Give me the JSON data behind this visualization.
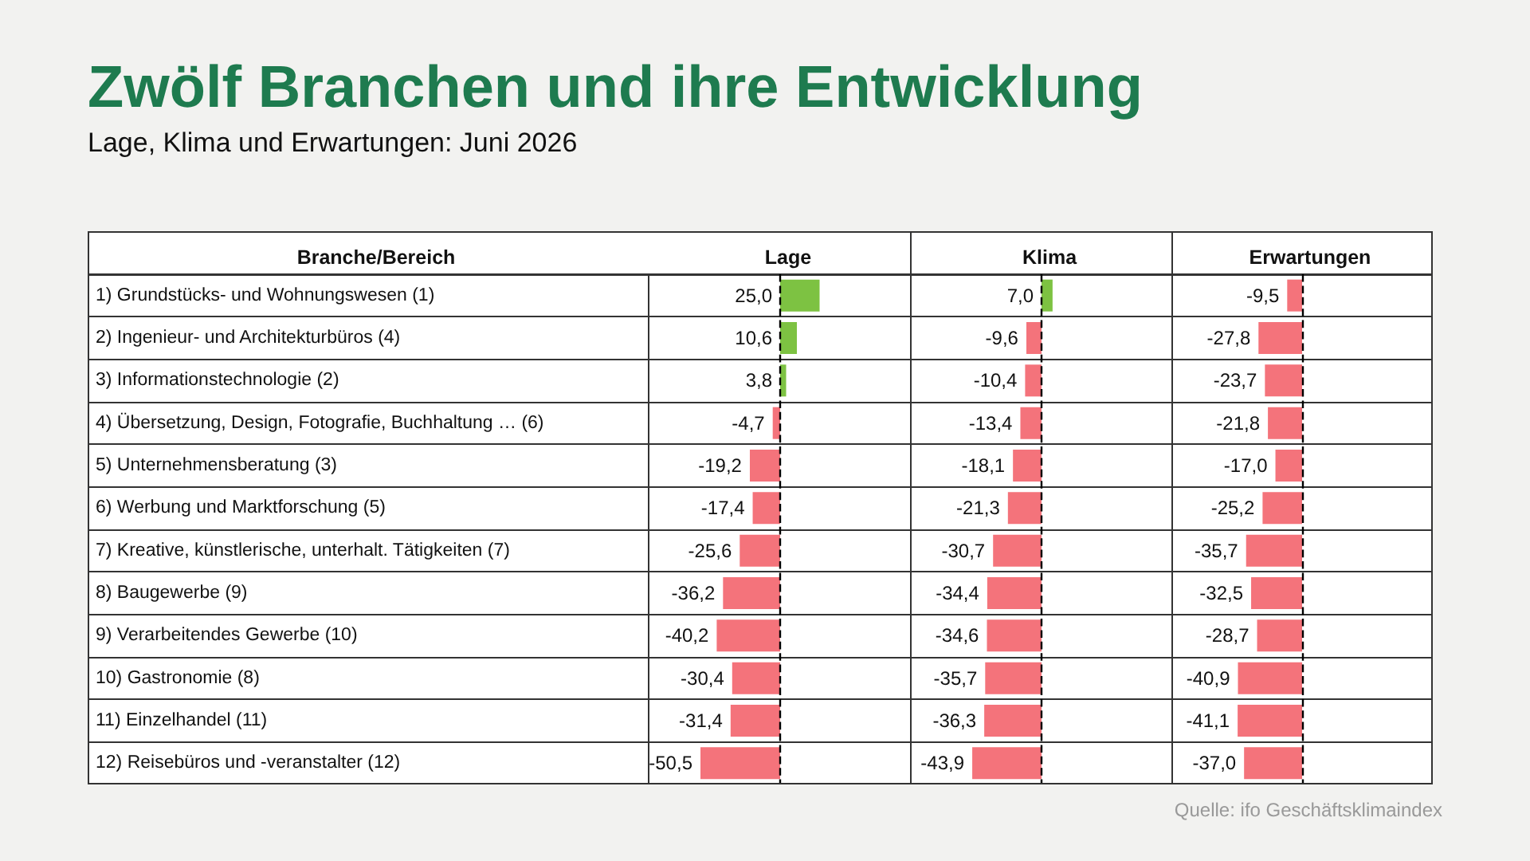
{
  "chart_data": [
    {
      "type": "other",
      "title": "Zwölf Branchen und ihre Entwicklung",
      "subtitle": "Lage, Klima und Erwartungen: Juni 2026",
      "annotations": [
        "Quelle: ifo Geschäftsklimaindex"
      ]
    },
    {
      "type": "bar",
      "orientation": "horizontal",
      "title": "Lage",
      "ylabel": "Branche/Bereich",
      "tick_labels": "y",
      "grid": "y",
      "categories": [
        "1) Grundstücks- und Wohnungswesen (1)",
        "2) Ingenieur- und Architekturbüros (4)",
        "3) Informationstechnologie (2)",
        "4) Übersetzung, Design, Fotografie, Buchhaltung … (6)",
        "5) Unternehmensberatung (3)",
        "6) Werbung und Marktforschung (5)",
        "7) Kreative, künstlerische, unterhalt. Tätigkeiten (7)",
        "8) Baugewerbe (9)",
        "9) Verarbeitendes Gewerbe (10)",
        "10) Gastronomie (8)",
        "11) Einzelhandel (11)",
        "12) Reisebüros und -veranstalter (12)"
      ],
      "values": [
        25.0,
        10.6,
        3.8,
        -4.7,
        -19.2,
        -17.4,
        -25.6,
        -36.2,
        -40.2,
        -30.4,
        -31.4,
        -50.5
      ],
      "value_labels": [
        "25,0",
        "10,6",
        "3,8",
        "-4,7",
        "-19,2",
        "-17,4",
        "-25,6",
        "-36,2",
        "-40,2",
        "-30,4",
        "-31,4",
        "-50,5"
      ],
      "colors": [
        "#7dc242",
        "#7dc242",
        "#7dc242",
        "#f4737b",
        "#f4737b",
        "#f4737b",
        "#f4737b",
        "#f4737b",
        "#f4737b",
        "#f4737b",
        "#f4737b",
        "#f4737b"
      ],
      "ref_lines": [
        {
          "axis": "x",
          "value": 0,
          "color": "#000000",
          "line_style": "dashed"
        }
      ]
    },
    {
      "type": "bar",
      "orientation": "horizontal",
      "title": "Klima",
      "tick_labels": false,
      "grid": "y",
      "categories": [
        null,
        null,
        null,
        null,
        null,
        null,
        null,
        null,
        null,
        null,
        null,
        null
      ],
      "values": [
        7.0,
        -9.6,
        -10.4,
        -13.4,
        -18.1,
        -21.3,
        -30.7,
        -34.4,
        -34.6,
        -35.7,
        -36.3,
        -43.9
      ],
      "value_labels": [
        "7,0",
        "-9,6",
        "-10,4",
        "-13,4",
        "-18,1",
        "-21,3",
        "-30,7",
        "-34,4",
        "-34,6",
        "-35,7",
        "-36,3",
        "-43,9"
      ],
      "colors": [
        "#7dc242",
        "#f4737b",
        "#f4737b",
        "#f4737b",
        "#f4737b",
        "#f4737b",
        "#f4737b",
        "#f4737b",
        "#f4737b",
        "#f4737b",
        "#f4737b",
        "#f4737b"
      ],
      "ref_lines": [
        {
          "axis": "x",
          "value": 0,
          "color": "#000000",
          "line_style": "dashed"
        }
      ]
    },
    {
      "type": "bar",
      "orientation": "horizontal",
      "title": "Erwartungen",
      "tick_labels": false,
      "grid": "y",
      "categories": [
        null,
        null,
        null,
        null,
        null,
        null,
        null,
        null,
        null,
        null,
        null,
        null
      ],
      "values": [
        -9.5,
        -27.8,
        -23.7,
        -21.8,
        -17.0,
        -25.2,
        -35.7,
        -32.5,
        -28.7,
        -40.9,
        -41.1,
        -37.0
      ],
      "value_labels": [
        "-9,5",
        "-27,8",
        "-23,7",
        "-21,8",
        "-17,0",
        "-25,2",
        "-35,7",
        "-32,5",
        "-28,7",
        "-40,9",
        "-41,1",
        "-37,0"
      ],
      "colors": [
        "#f4737b",
        "#f4737b",
        "#f4737b",
        "#f4737b",
        "#f4737b",
        "#f4737b",
        "#f4737b",
        "#f4737b",
        "#f4737b",
        "#f4737b",
        "#f4737b",
        "#f4737b"
      ],
      "ref_lines": [
        {
          "axis": "x",
          "value": 0,
          "color": "#000000",
          "line_style": "dashed"
        }
      ]
    }
  ]
}
